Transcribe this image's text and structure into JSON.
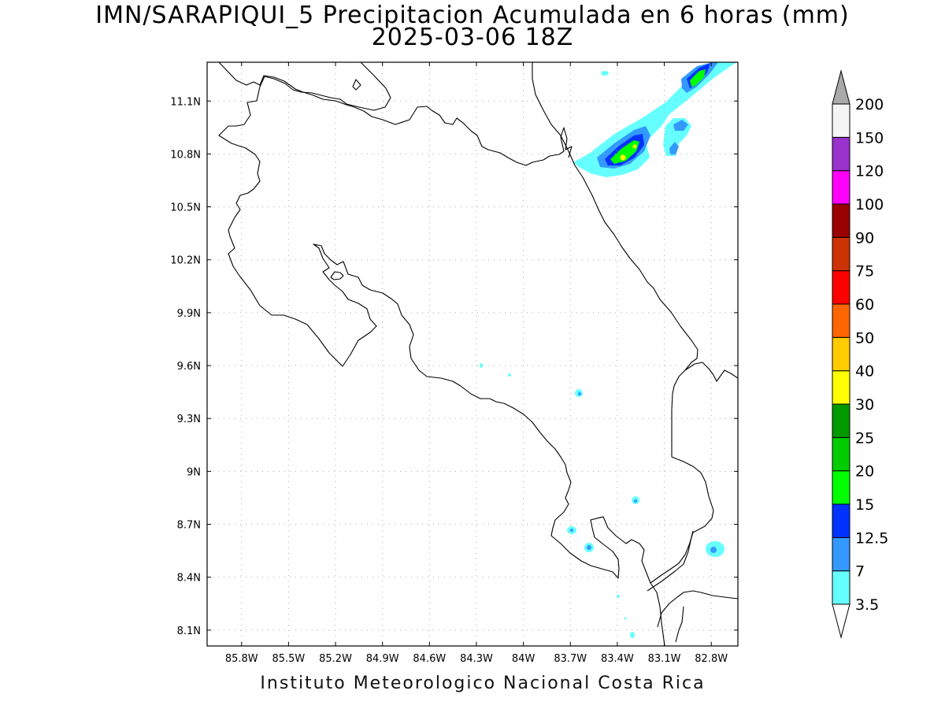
{
  "title": {
    "line1": "IMN/SARAPIQUI_5 Precipitacion Acumulada en 6 horas (mm)",
    "line2": "2025-03-06 18Z"
  },
  "footer": "Instituto Meteorologico Nacional Costa Rica",
  "map": {
    "lon_range": [
      -86.02,
      -82.63
    ],
    "lat_range": [
      8.01,
      11.32
    ],
    "lon_ticks": [
      {
        "value": -85.8,
        "label": "85.8W"
      },
      {
        "value": -85.5,
        "label": "85.5W"
      },
      {
        "value": -85.2,
        "label": "85.2W"
      },
      {
        "value": -84.9,
        "label": "84.9W"
      },
      {
        "value": -84.6,
        "label": "84.6W"
      },
      {
        "value": -84.3,
        "label": "84.3W"
      },
      {
        "value": -84.0,
        "label": "84W"
      },
      {
        "value": -83.7,
        "label": "83.7W"
      },
      {
        "value": -83.4,
        "label": "83.4W"
      },
      {
        "value": -83.1,
        "label": "83.1W"
      },
      {
        "value": -82.8,
        "label": "82.8W"
      }
    ],
    "lat_ticks": [
      {
        "value": 11.1,
        "label": "11.1N"
      },
      {
        "value": 10.8,
        "label": "10.8N"
      },
      {
        "value": 10.5,
        "label": "10.5N"
      },
      {
        "value": 10.2,
        "label": "10.2N"
      },
      {
        "value": 9.9,
        "label": "9.9N"
      },
      {
        "value": 9.6,
        "label": "9.6N"
      },
      {
        "value": 9.3,
        "label": "9.3N"
      },
      {
        "value": 9.0,
        "label": "9N"
      },
      {
        "value": 8.7,
        "label": "8.7N"
      },
      {
        "value": 8.4,
        "label": "8.4N"
      },
      {
        "value": 8.1,
        "label": "8.1N"
      }
    ],
    "grid": "dotted",
    "colorbar": {
      "unit": "mm",
      "extend": "both",
      "levels": [
        "3.5",
        "7",
        "12.5",
        "15",
        "20",
        "25",
        "30",
        "40",
        "50",
        "60",
        "75",
        "90",
        "100",
        "120",
        "150",
        "200"
      ],
      "colors": [
        "#66ffff",
        "#3399ff",
        "#0033ff",
        "#00ff00",
        "#00cc00",
        "#009900",
        "#ffff00",
        "#ffcc00",
        "#ff6600",
        "#ff0000",
        "#cc3300",
        "#990000",
        "#ff00ff",
        "#9933cc",
        "#f5f5f5"
      ],
      "over_color": "#a9a9a9",
      "under_color": "#ffffff"
    },
    "precip_colors": {
      "light": "#66ffff",
      "moderate": "#3399ff",
      "heavy": "#0033ff",
      "green": "#00ff00",
      "yellow": "#ffff00"
    }
  }
}
